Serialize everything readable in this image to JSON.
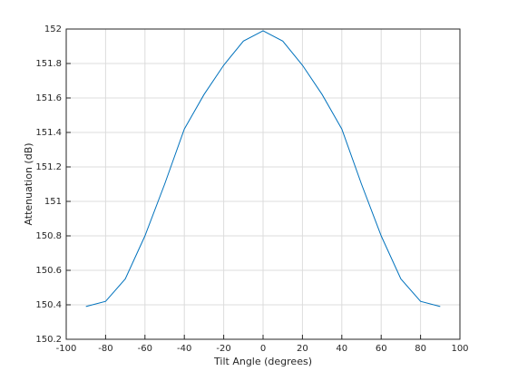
{
  "chart_data": {
    "type": "line",
    "xlabel": "Tilt Angle (degrees)",
    "ylabel": "Attenuation (dB)",
    "x": [
      -90,
      -80,
      -70,
      -60,
      -50,
      -40,
      -30,
      -20,
      -10,
      0,
      10,
      20,
      30,
      40,
      50,
      60,
      70,
      80,
      90
    ],
    "series": [
      {
        "name": "Attenuation",
        "color": "#0072bd",
        "values": [
          150.39,
          150.42,
          150.55,
          150.8,
          151.1,
          151.42,
          151.62,
          151.79,
          151.93,
          151.99,
          151.93,
          151.79,
          151.62,
          151.42,
          151.1,
          150.8,
          150.55,
          150.42,
          150.39
        ]
      }
    ],
    "xlim": [
      -100,
      100
    ],
    "xticks": [
      -100,
      -80,
      -60,
      -40,
      -20,
      0,
      20,
      40,
      60,
      80,
      100
    ],
    "ylim": [
      150.2,
      152
    ],
    "yticks": [
      150.2,
      150.4,
      150.6,
      150.8,
      151,
      151.2,
      151.4,
      151.6,
      151.8,
      152
    ],
    "grid": true
  }
}
